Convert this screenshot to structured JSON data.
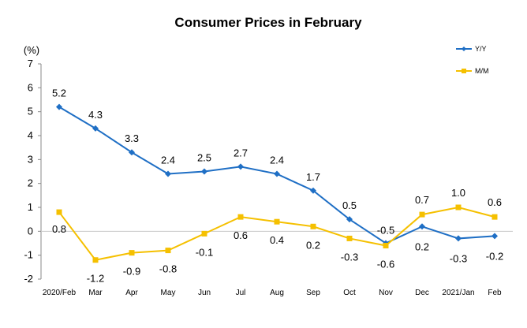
{
  "chart_data": {
    "type": "line",
    "title": "Consumer Prices in February",
    "ylabel": "(%)",
    "ylim": [
      -2,
      7
    ],
    "yticks": [
      7,
      6,
      5,
      4,
      3,
      2,
      1,
      0,
      -1,
      -2
    ],
    "categories": [
      "2020/Feb",
      "Mar",
      "Apr",
      "May",
      "Jun",
      "Jul",
      "Aug",
      "Sep",
      "Oct",
      "Nov",
      "Dec",
      "2021/Jan",
      "Feb"
    ],
    "grid": false,
    "legend_position": "top-right",
    "series": [
      {
        "name": "Y/Y",
        "color": "#1f6fc5",
        "marker": "diamond",
        "values": [
          5.2,
          4.3,
          3.3,
          2.4,
          2.5,
          2.7,
          2.4,
          1.7,
          0.5,
          -0.5,
          0.2,
          -0.3,
          -0.2
        ],
        "labels": [
          "5.2",
          "4.3",
          "3.3",
          "2.4",
          "2.5",
          "2.7",
          "2.4",
          "1.7",
          "0.5",
          "-0.5",
          "0.2",
          "-0.3",
          "-0.2"
        ]
      },
      {
        "name": "M/M",
        "color": "#f5c000",
        "marker": "square",
        "values": [
          0.8,
          -1.2,
          -0.9,
          -0.8,
          -0.1,
          0.6,
          0.4,
          0.2,
          -0.3,
          -0.6,
          0.7,
          1.0,
          0.6
        ],
        "labels": [
          "0.8",
          "-1.2",
          "-0.9",
          "-0.8",
          "-0.1",
          "0.6",
          "0.4",
          "0.2",
          "-0.3",
          "-0.6",
          "0.7",
          "1.0",
          "0.6"
        ]
      }
    ]
  }
}
